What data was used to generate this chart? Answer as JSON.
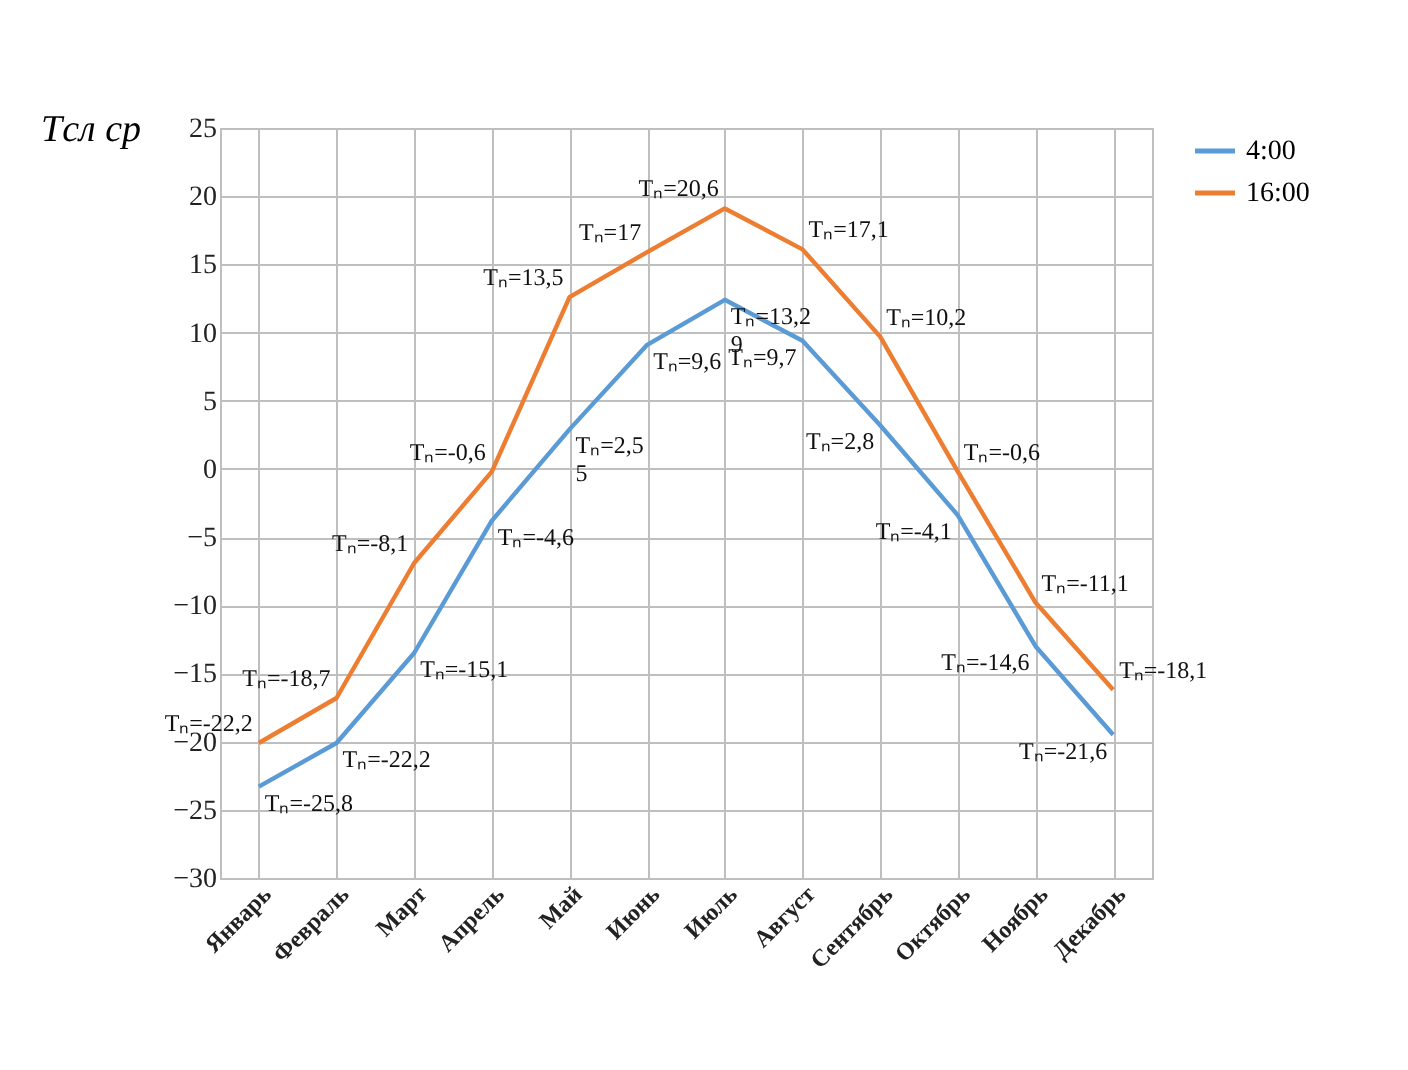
{
  "chart_data": {
    "type": "line",
    "ylabel": "Tсл ср",
    "categories": [
      "Январь",
      "Февраль",
      "Март",
      "Апрель",
      "Май",
      "Июнь",
      "Июль",
      "Август",
      "Сентябрь",
      "Октябрь",
      "Ноябрь",
      "Декабрь"
    ],
    "series": [
      {
        "name": "4:00",
        "color": "#5b9bd5",
        "values": [
          -23.3,
          -20.1,
          -13.5,
          -3.8,
          2.9,
          9.1,
          12.4,
          9.4,
          3.2,
          -3.4,
          -13,
          -19.5
        ]
      },
      {
        "name": "16:00",
        "color": "#ed7d31",
        "values": [
          -20.1,
          -16.8,
          -6.9,
          -0.2,
          12.6,
          15.9,
          19.1,
          16.1,
          9.7,
          -0.2,
          -9.8,
          -16.2
        ]
      }
    ],
    "ylim": [
      -30,
      25
    ],
    "yticks": [
      -30,
      -25,
      -20,
      -15,
      -10,
      -5,
      0,
      5,
      10,
      15,
      20,
      25
    ],
    "grid": true,
    "legend": "right",
    "marker": "none",
    "line_style": "solid",
    "annotations": [
      "Tₙ=-22,2",
      "Tₙ=-25,8",
      "Tₙ=-18,7",
      "Tₙ=-22,2",
      "Tₙ=-8,1",
      "Tₙ=-15,1",
      "Tₙ=-0,6",
      "Tₙ=-4,6",
      "Tₙ=13,5",
      "Tₙ=2,5\n5",
      "Tₙ=17",
      "Tₙ=9,6",
      "Tₙ=20,6",
      "Tₙ=13,2\n9",
      "Tₙ=17,1",
      "Tₙ=9,7",
      "Tₙ=10,2",
      "Tₙ=2,8",
      "Tₙ=-0,6",
      "Tₙ=-4,1",
      "Tₙ=-11,1",
      "Tₙ=-14,6",
      "Tₙ=-18,1",
      "Tₙ=-21,6"
    ]
  }
}
